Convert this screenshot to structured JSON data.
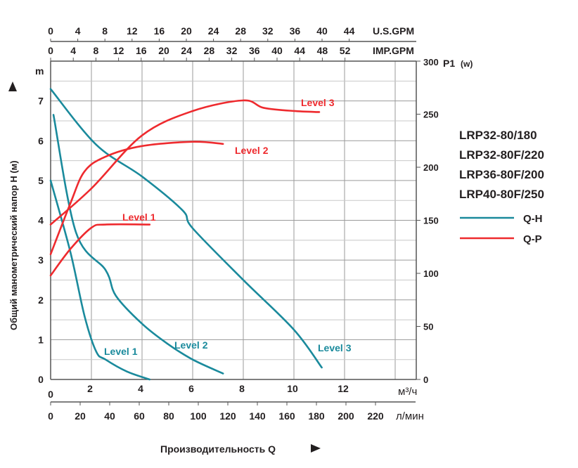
{
  "chart_data": {
    "type": "line",
    "title": "",
    "xlabel": "Производительность Q",
    "ylabel": "Общий манометрический напор H (м)",
    "y_unit_label": "m",
    "y2label": "P1",
    "y2label_unit": "(w)",
    "xlim_m3h": [
      0,
      14.8
    ],
    "ylim": [
      0,
      8
    ],
    "y2lim": [
      0,
      300
    ],
    "grid": true,
    "x_axes": {
      "m3h": {
        "unit": "м³/ч",
        "ticks": [
          0,
          2,
          4,
          6,
          8,
          10,
          12
        ]
      },
      "lmin": {
        "unit": "л/мин",
        "ticks": [
          0,
          20,
          40,
          60,
          80,
          100,
          120,
          140,
          160,
          180,
          200,
          220
        ]
      },
      "usgpm": {
        "unit": "U.S.GPM",
        "ticks": [
          0,
          4,
          8,
          12,
          16,
          20,
          24,
          28,
          32,
          36,
          40,
          44
        ]
      },
      "impgpm": {
        "unit": "IMP.GPM",
        "ticks": [
          0,
          4,
          8,
          12,
          16,
          20,
          24,
          28,
          32,
          36,
          40,
          44,
          48,
          52
        ]
      }
    },
    "y_ticks": [
      0,
      1,
      2,
      3,
      4,
      5,
      6,
      7
    ],
    "y2_ticks": [
      0,
      50,
      100,
      150,
      200,
      250,
      300
    ],
    "legend": {
      "placement": "right",
      "models": [
        "LRP32-80/180",
        "LRP32-80F/220",
        "LRP36-80F/200",
        "LRP40-80F/250"
      ],
      "entries": [
        {
          "name": "Q-H",
          "color": "#1a8a9c"
        },
        {
          "name": "Q-P",
          "color": "#ee2a2e"
        }
      ]
    },
    "series": [
      {
        "name": "Q-H Level 1",
        "label": "Level 1",
        "axis": "H",
        "color": "#1a8a9c",
        "x": [
          0,
          0.97,
          1.66,
          2.19,
          2.56,
          3.4,
          4.3
        ],
        "y": [
          5.0,
          3.2,
          1.6,
          0.7,
          0.5,
          0.2,
          0.0
        ]
      },
      {
        "name": "Q-H Level 2",
        "label": "Level 2",
        "axis": "H",
        "color": "#1a8a9c",
        "x": [
          0.14,
          1.24,
          2.56,
          2.97,
          4.0,
          5.0,
          6.0,
          7.2
        ],
        "y": [
          6.65,
          3.7,
          2.75,
          2.1,
          1.4,
          0.9,
          0.5,
          0.15
        ]
      },
      {
        "name": "Q-H Level 3",
        "label": "Level 3",
        "axis": "H",
        "color": "#1a8a9c",
        "x": [
          0,
          2.19,
          4.0,
          5.6,
          6.0,
          8.0,
          10.0,
          11.1
        ],
        "y": [
          7.3,
          5.9,
          5.1,
          4.25,
          3.8,
          2.5,
          1.25,
          0.3
        ]
      },
      {
        "name": "Q-P Level 1",
        "label": "Level 1",
        "axis": "P",
        "color": "#ee2a2e",
        "x": [
          0,
          0.97,
          2.0,
          2.56,
          4.3
        ],
        "y": [
          98,
          123,
          143,
          146,
          146
        ]
      },
      {
        "name": "Q-P Level 2",
        "label": "Level 2",
        "axis": "P",
        "color": "#ee2a2e",
        "x": [
          0,
          0.97,
          1.66,
          2.56,
          4.0,
          6.0,
          7.2
        ],
        "y": [
          118,
          166,
          196,
          210,
          220,
          224,
          222
        ]
      },
      {
        "name": "Q-P Level 3",
        "label": "Level 3",
        "axis": "P",
        "color": "#ee2a2e",
        "x": [
          0,
          2.0,
          4.0,
          6.0,
          8.0,
          8.8,
          10.0,
          11.0
        ],
        "y": [
          146,
          180,
          230,
          253,
          263,
          256,
          253,
          252
        ]
      }
    ]
  }
}
